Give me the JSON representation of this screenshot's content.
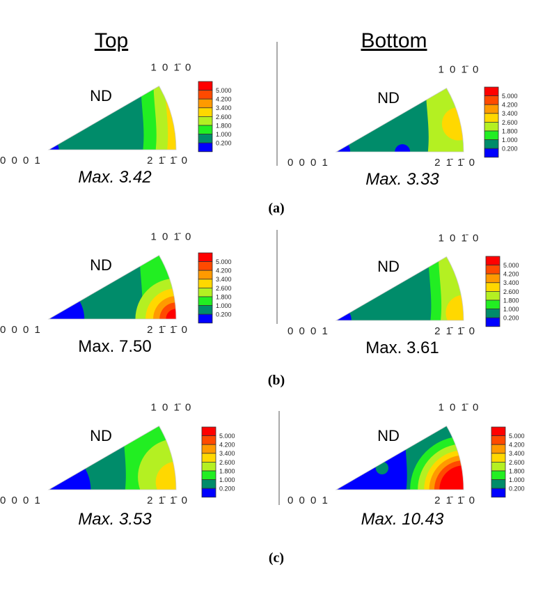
{
  "headers": {
    "left": "Top",
    "right": "Bottom"
  },
  "axis_labels": {
    "pole": "ND",
    "origin": "0 0 0 1",
    "top_corner": "1 0 1̄ 0",
    "right_corner": "2 1̄ 1̄ 0"
  },
  "legend": {
    "values": [
      "5.000",
      "4.200",
      "3.400",
      "2.600",
      "1.800",
      "1.000",
      "0.200"
    ],
    "colors": [
      "#ff0000",
      "#ff4a00",
      "#ff9a00",
      "#ffd800",
      "#b4f022",
      "#22ee22",
      "#008c6a",
      "#0000ff"
    ]
  },
  "rows": [
    {
      "label": "(a)",
      "panels": [
        {
          "max": "Max. 3.42",
          "italic": true
        },
        {
          "max": "Max. 3.33",
          "italic": true
        }
      ]
    },
    {
      "label": "(b)",
      "panels": [
        {
          "max": "Max. 7.50",
          "italic": false
        },
        {
          "max": "Max. 3.61",
          "italic": false
        }
      ]
    },
    {
      "label": "(c)",
      "panels": [
        {
          "max": "Max. 3.53",
          "italic": true
        },
        {
          "max": "Max. 10.43",
          "italic": true
        }
      ]
    }
  ]
}
